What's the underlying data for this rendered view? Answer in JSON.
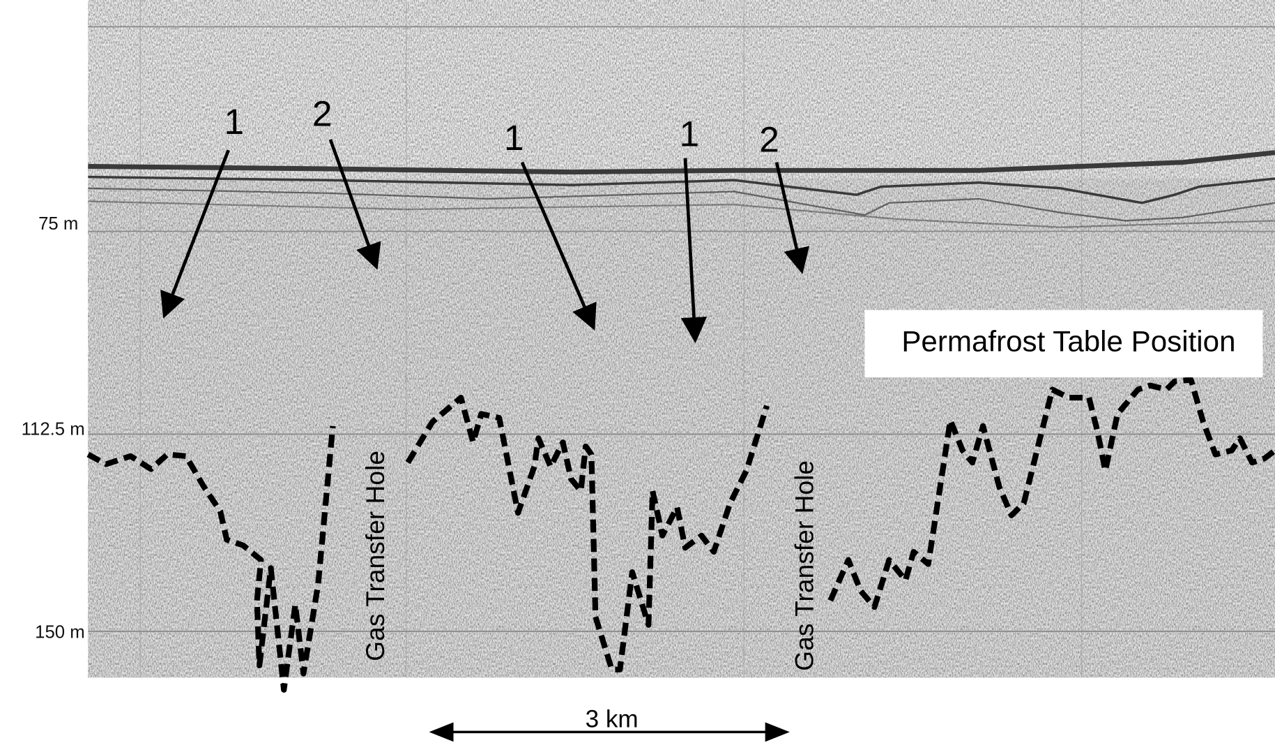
{
  "depth_labels": [
    "75 m",
    "112.5 m",
    "150 m"
  ],
  "arrows": [
    {
      "label": "1"
    },
    {
      "label": "2"
    },
    {
      "label": "1"
    },
    {
      "label": "1"
    },
    {
      "label": "2"
    }
  ],
  "gas_transfer_labels": [
    "Gas Transfer Hole",
    "Gas Transfer Hole"
  ],
  "permafrost_label": "Permafrost Table Position",
  "scale_label": "3 km"
}
